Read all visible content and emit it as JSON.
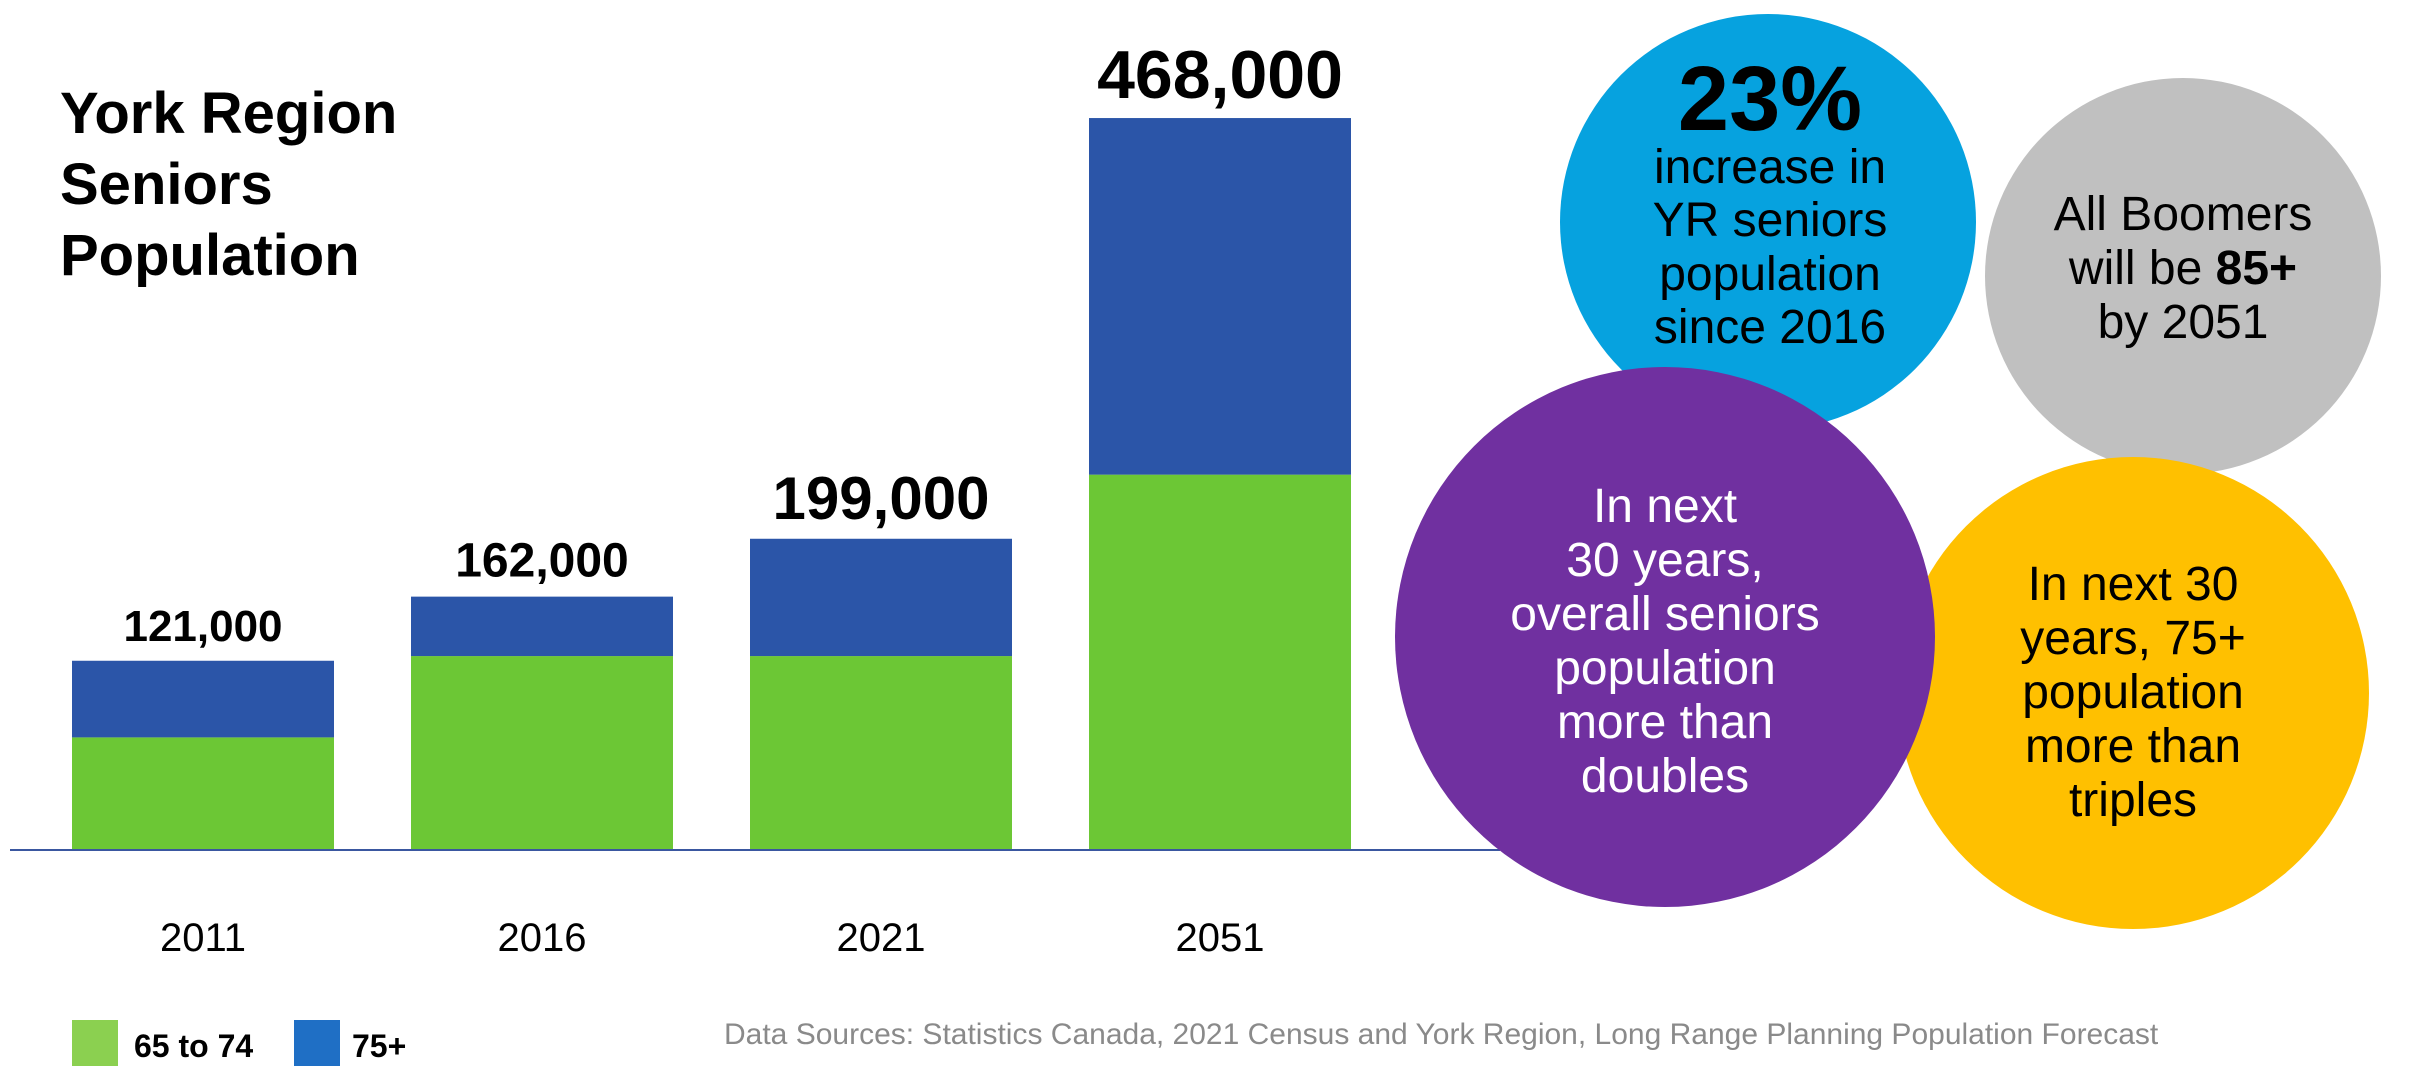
{
  "chart_data": {
    "type": "bar",
    "stacked": true,
    "title_lines": [
      "York Region",
      "Seniors",
      "Population"
    ],
    "categories": [
      "2011",
      "2016",
      "2021",
      "2051"
    ],
    "series": [
      {
        "name": "65 to 74",
        "color": "#6cc735",
        "values": [
          72000,
          124000,
          124000,
          240000
        ]
      },
      {
        "name": "75+",
        "color": "#2b55a8",
        "values": [
          49000,
          38000,
          75000,
          228000
        ]
      }
    ],
    "totals": [
      "121,000",
      "162,000",
      "199,000",
      "468,000"
    ],
    "ylim": [
      0,
      500000
    ],
    "grid": false
  },
  "legend": {
    "items": [
      {
        "label": "65 to 74",
        "color": "#8bd050"
      },
      {
        "label": "75+",
        "color": "#1f6fc5"
      }
    ]
  },
  "callouts": {
    "blue": {
      "big": "23%",
      "lines": [
        "increase in",
        "YR seniors",
        "population",
        "since 2016"
      ],
      "color": "#06a2df"
    },
    "gray": {
      "line1": "All Boomers",
      "line2_pre": "will be ",
      "line2_bold": "85+",
      "line3": "by 2051",
      "color": "#c0c0c0"
    },
    "purple": {
      "lines": [
        "In next",
        "30 years,",
        "overall seniors",
        "population",
        "more than",
        "doubles"
      ],
      "color": "#7030a0"
    },
    "yellow": {
      "lines": [
        "In next 30",
        "years, 75+",
        "population",
        "more than",
        "triples"
      ],
      "color": "#ffc000"
    }
  },
  "footer": {
    "source": "Data Sources: Statistics Canada, 2021 Census and York Region, Long Range Planning Population Forecast"
  }
}
